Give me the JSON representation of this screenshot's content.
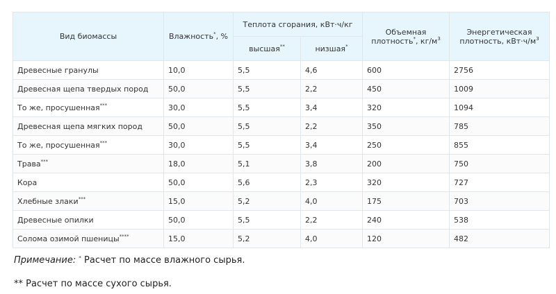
{
  "table": {
    "headers": {
      "type": "Вид биомассы",
      "moisture": "Влажность",
      "moisture_mark": "*",
      "moisture_unit": ", %",
      "heat": "Теплота сгорания, кВт·ч/кг",
      "heat_high": "высшая",
      "heat_high_mark": "**",
      "heat_low": "низшая",
      "heat_low_mark": "*",
      "density_l1": "Объемная",
      "density_l2": "плотность",
      "density_mark": "*",
      "density_unit": ", кг/м",
      "density_exp": "3",
      "energy_l1": "Энергетическая",
      "energy_l2": "плотность, кВт·ч/м",
      "energy_exp": "3"
    },
    "rows": [
      {
        "name": "Древесные гранулы",
        "mark": "",
        "moisture": "10,0",
        "high": "5,5",
        "low": "4,6",
        "density": "600",
        "energy": "2756"
      },
      {
        "name": "Древесная щепа твердых пород",
        "mark": "",
        "moisture": "50,0",
        "high": "5,5",
        "low": "2,2",
        "density": "450",
        "energy": "1009"
      },
      {
        "name": "То же, просушенная",
        "mark": "***",
        "moisture": "30,0",
        "high": "5,5",
        "low": "3,4",
        "density": "320",
        "energy": "1094"
      },
      {
        "name": "Древесная щепа мягких пород",
        "mark": "",
        "moisture": "50,0",
        "high": "5,5",
        "low": "2,2",
        "density": "350",
        "energy": "785"
      },
      {
        "name": "То же, просушенная",
        "mark": "***",
        "moisture": "30,0",
        "high": "5,5",
        "low": "3,4",
        "density": "250",
        "energy": "855"
      },
      {
        "name": "Трава",
        "mark": "***",
        "moisture": "18,0",
        "high": "5,1",
        "low": "3,8",
        "density": "200",
        "energy": "750"
      },
      {
        "name": "Кора",
        "mark": "",
        "moisture": "50,0",
        "high": "5,6",
        "low": "2,3",
        "density": "320",
        "energy": "727"
      },
      {
        "name": "Хлебные злаки",
        "mark": "***",
        "moisture": "15,0",
        "high": "5,2",
        "low": "4,0",
        "density": "175",
        "energy": "703"
      },
      {
        "name": "Древесные опилки",
        "mark": "",
        "moisture": "50,0",
        "high": "5,5",
        "low": "2,2",
        "density": "240",
        "energy": "538"
      },
      {
        "name": "Солома озимой пшеницы",
        "mark": "****",
        "moisture": "15,0",
        "high": "5,2",
        "low": "4,0",
        "density": "120",
        "energy": "482"
      }
    ]
  },
  "notes": {
    "label": "Примечание:",
    "mark1": "*",
    "text1": " Расчет по массе влажного сырья.",
    "line2": "** Расчет по массе сухого сырья."
  }
}
